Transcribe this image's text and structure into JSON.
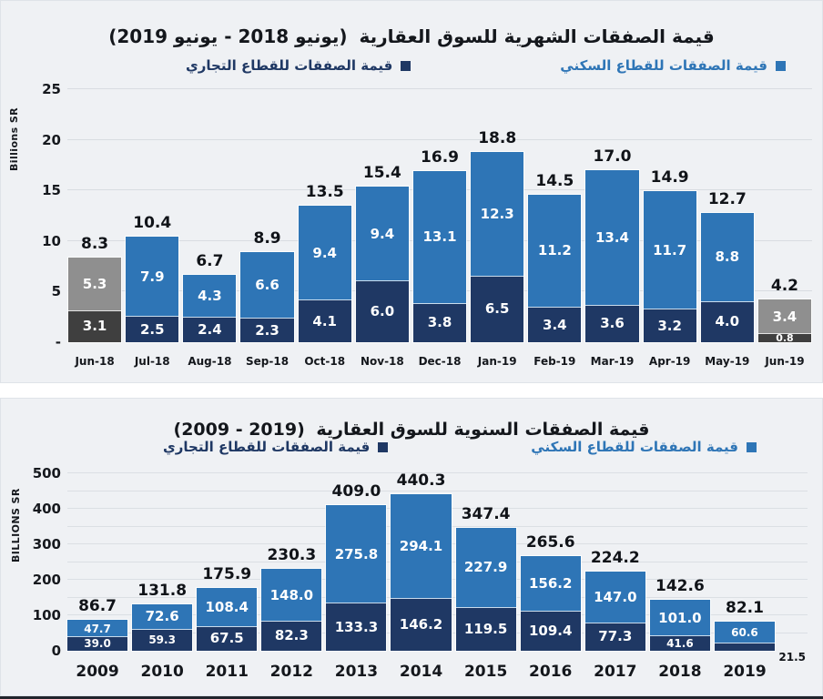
{
  "chart_data": [
    {
      "type": "bar",
      "stacked": true,
      "title_main": "قيمة الصفقات الشهرية للسوق العقارية",
      "title_range": "(يونيو 2018 - يونيو 2019)",
      "range_dir": "rtl",
      "ylabel": "Billions SR",
      "ylim": [
        0,
        25
      ],
      "grid_step": 5,
      "ytick_labels": [
        "25",
        "20",
        "15",
        "10",
        "5",
        "-"
      ],
      "legend_position": "top",
      "categories": [
        "Jun-18",
        "Jul-18",
        "Aug-18",
        "Sep-18",
        "Oct-18",
        "Nov-18",
        "Dec-18",
        "Jan-19",
        "Feb-19",
        "Mar-19",
        "Apr-19",
        "May-19",
        "Jun-19"
      ],
      "series": [
        {
          "key": "residential",
          "name": "قيمة الصفقات للقطاع السكني",
          "color": "#2E75B6",
          "values": [
            5.3,
            7.9,
            4.3,
            6.6,
            9.4,
            9.4,
            13.1,
            12.3,
            11.2,
            13.4,
            11.7,
            8.8,
            3.4
          ]
        },
        {
          "key": "commercial",
          "name": "قيمة الصفقات للقطاع التجاري",
          "color": "#1F3864",
          "values": [
            3.1,
            2.5,
            2.4,
            2.3,
            4.1,
            6.0,
            3.8,
            6.5,
            3.4,
            3.6,
            3.2,
            4.0,
            0.8
          ]
        }
      ],
      "totals": [
        8.3,
        10.4,
        6.7,
        8.9,
        13.5,
        15.4,
        16.9,
        18.8,
        14.5,
        17.0,
        14.9,
        12.7,
        4.2
      ],
      "highlight_gray": {
        "categories": [
          "Jun-18",
          "Jun-19"
        ],
        "residential_color": "#8F8F8F",
        "commercial_color": "#3F3F3F"
      }
    },
    {
      "type": "bar",
      "stacked": true,
      "title_main": "قيمة الصفقات السنوية للسوق العقارية",
      "title_range": "(2009 - 2019)",
      "range_dir": "ltr",
      "ylabel": "BILLIONS SR",
      "ylim": [
        0,
        500
      ],
      "grid_step": 50,
      "ytick_labels": [
        "500",
        "400",
        "300",
        "200",
        "100",
        "0"
      ],
      "legend_position": "top",
      "categories": [
        "2009",
        "2010",
        "2011",
        "2012",
        "2013",
        "2014",
        "2015",
        "2016",
        "2017",
        "2018",
        "2019"
      ],
      "series": [
        {
          "key": "residential",
          "name": "قيمة الصفقات للقطاع السكني",
          "color": "#2E75B6",
          "values": [
            47.7,
            72.6,
            108.4,
            148.0,
            275.8,
            294.1,
            227.9,
            156.2,
            147.0,
            101.0,
            60.6
          ]
        },
        {
          "key": "commercial",
          "name": "قيمة الصفقات للقطاع التجاري",
          "color": "#1F3864",
          "values": [
            39.0,
            59.3,
            67.5,
            82.3,
            133.3,
            146.2,
            119.5,
            109.4,
            77.3,
            41.6,
            21.5
          ]
        }
      ],
      "totals": [
        86.7,
        131.8,
        175.9,
        230.3,
        409.0,
        440.3,
        347.4,
        265.6,
        224.2,
        142.6,
        82.1
      ],
      "outside_labels": [
        {
          "category": "2019",
          "series": "commercial"
        }
      ]
    }
  ]
}
